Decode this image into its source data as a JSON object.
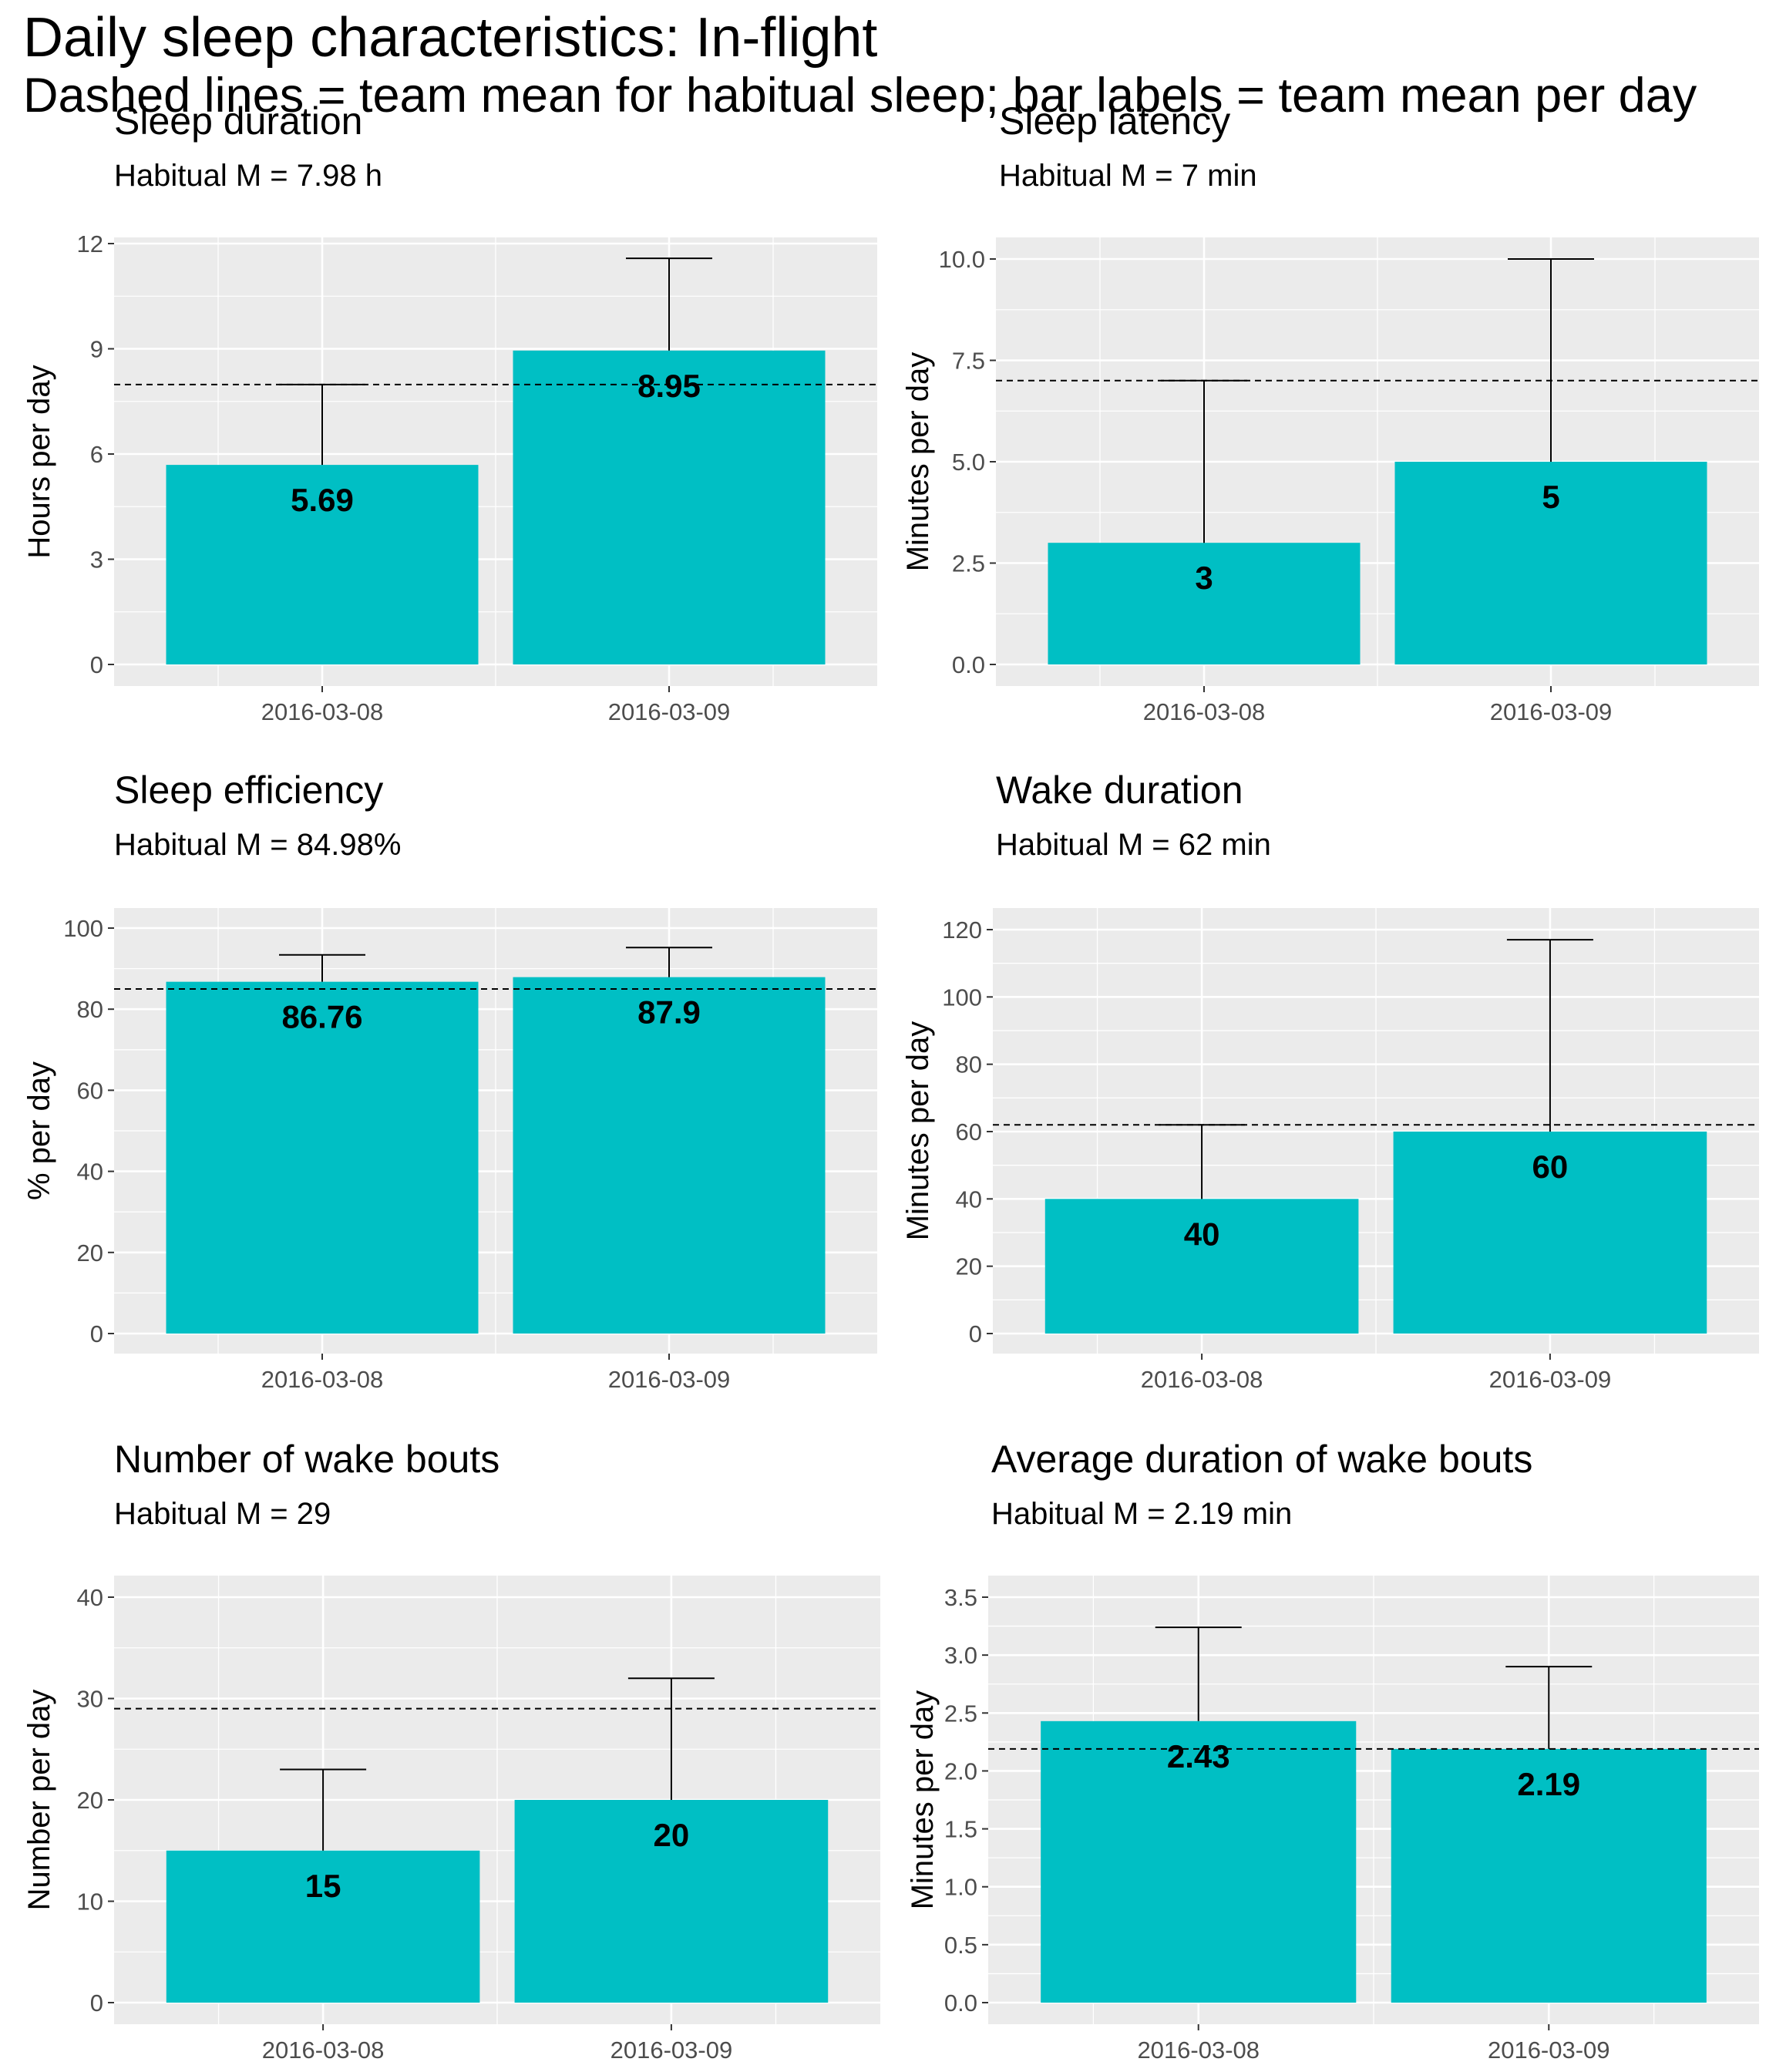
{
  "title": "Daily sleep characteristics: In-flight",
  "subtitle": "Dashed lines = team mean for habitual sleep; bar labels = team mean per day",
  "colors": {
    "bar": "#00BFC4",
    "panel_bg": "#EBEBEB",
    "grid": "#FFFFFF",
    "axis_text": "#4D4D4D"
  },
  "chart_data": [
    {
      "type": "bar",
      "title": "Sleep duration",
      "subtitle": "Habitual M = 7.98 h",
      "ylabel": "Hours per day",
      "xlabel": "",
      "categories": [
        "2016-03-08",
        "2016-03-09"
      ],
      "values": [
        5.69,
        8.95
      ],
      "bar_labels": [
        "5.69",
        "8.95"
      ],
      "error_upper": [
        7.98,
        11.58
      ],
      "reference_line": 7.98,
      "ylim": [
        0,
        12
      ],
      "yticks": [
        0,
        3,
        6,
        9,
        12
      ],
      "ytick_labels": [
        "0",
        "3",
        "6",
        "9",
        "12"
      ]
    },
    {
      "type": "bar",
      "title": "Sleep latency",
      "subtitle": "Habitual M = 7 min",
      "ylabel": "Minutes per day",
      "xlabel": "",
      "categories": [
        "2016-03-08",
        "2016-03-09"
      ],
      "values": [
        3,
        5
      ],
      "bar_labels": [
        "3",
        "5"
      ],
      "error_upper": [
        7,
        10
      ],
      "reference_line": 7,
      "ylim": [
        0,
        10
      ],
      "yticks": [
        0,
        2.5,
        5,
        7.5,
        10
      ],
      "ytick_labels": [
        "0.0",
        "2.5",
        "5.0",
        "7.5",
        "10.0"
      ]
    },
    {
      "type": "bar",
      "title": "Sleep efficiency",
      "subtitle": "Habitual M = 84.98%",
      "ylabel": "% per day",
      "xlabel": "",
      "categories": [
        "2016-03-08",
        "2016-03-09"
      ],
      "values": [
        86.76,
        87.9
      ],
      "bar_labels": [
        "86.76",
        "87.9"
      ],
      "error_upper": [
        93.4,
        95.2
      ],
      "reference_line": 84.98,
      "ylim": [
        0,
        100
      ],
      "yticks": [
        0,
        20,
        40,
        60,
        80,
        100
      ],
      "ytick_labels": [
        "0",
        "20",
        "40",
        "60",
        "80",
        "100"
      ]
    },
    {
      "type": "bar",
      "title": "Wake duration",
      "subtitle": "Habitual M = 62 min",
      "ylabel": "Minutes per day",
      "xlabel": "",
      "categories": [
        "2016-03-08",
        "2016-03-09"
      ],
      "values": [
        40,
        60
      ],
      "bar_labels": [
        "40",
        "60"
      ],
      "error_upper": [
        62,
        117
      ],
      "reference_line": 62,
      "ylim": [
        0,
        120
      ],
      "yticks": [
        0,
        20,
        40,
        60,
        80,
        100,
        120
      ],
      "ytick_labels": [
        "0",
        "20",
        "40",
        "60",
        "80",
        "100",
        "120"
      ]
    },
    {
      "type": "bar",
      "title": "Number of wake bouts",
      "subtitle": "Habitual M = 29",
      "ylabel": "Number per day",
      "xlabel": "",
      "categories": [
        "2016-03-08",
        "2016-03-09"
      ],
      "values": [
        15,
        20
      ],
      "bar_labels": [
        "15",
        "20"
      ],
      "error_upper": [
        23,
        32
      ],
      "reference_line": 29,
      "ylim": [
        0,
        40
      ],
      "yticks": [
        0,
        10,
        20,
        30,
        40
      ],
      "ytick_labels": [
        "0",
        "10",
        "20",
        "30",
        "40"
      ]
    },
    {
      "type": "bar",
      "title": "Average duration of wake bouts",
      "subtitle": "Habitual M = 2.19 min",
      "ylabel": "Minutes per day",
      "xlabel": "",
      "categories": [
        "2016-03-08",
        "2016-03-09"
      ],
      "values": [
        2.43,
        2.19
      ],
      "bar_labels": [
        "2.43",
        "2.19"
      ],
      "error_upper": [
        3.24,
        2.9
      ],
      "reference_line": 2.19,
      "ylim": [
        0,
        3.5
      ],
      "yticks": [
        0,
        0.5,
        1,
        1.5,
        2,
        2.5,
        3,
        3.5
      ],
      "ytick_labels": [
        "0.0",
        "0.5",
        "1.0",
        "1.5",
        "2.0",
        "2.5",
        "3.0",
        "3.5"
      ]
    }
  ]
}
